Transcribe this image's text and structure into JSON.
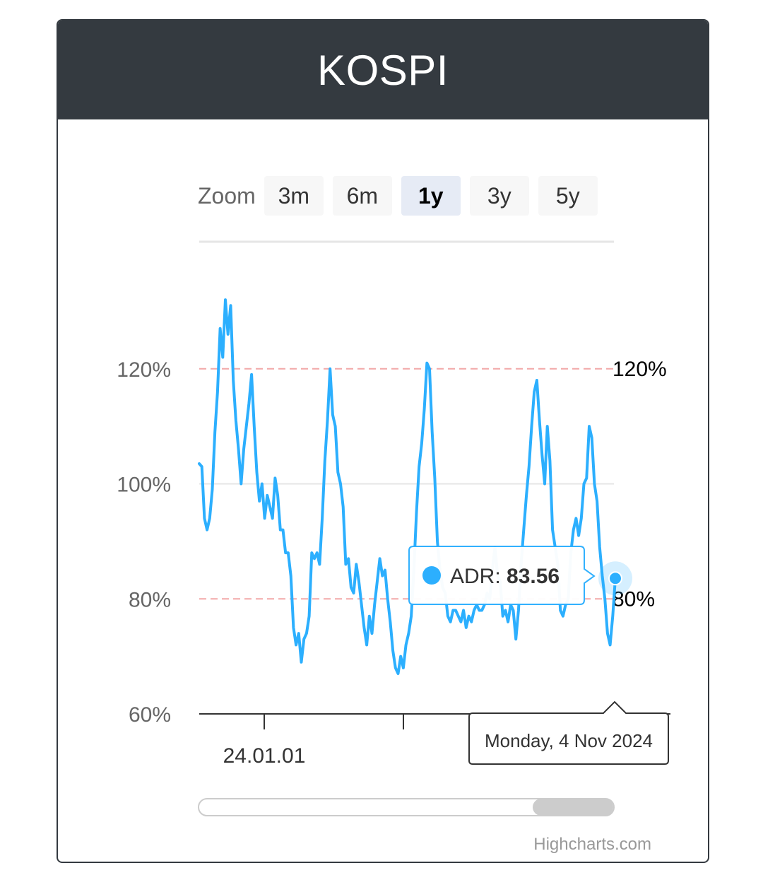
{
  "title": "KOSPI",
  "zoom": {
    "label": "Zoom",
    "buttons": [
      "3m",
      "6m",
      "1y",
      "3y",
      "5y"
    ],
    "selected": "1y"
  },
  "chart_data": {
    "type": "line",
    "series": [
      {
        "name": "ADR",
        "color": "#2caffe",
        "values": [
          103.5,
          103,
          94,
          92,
          94,
          99,
          109,
          116,
          127,
          122,
          132,
          126,
          131,
          118,
          111,
          106,
          100,
          106,
          110,
          114,
          119,
          110,
          102,
          97,
          100,
          94,
          98,
          96,
          94,
          101,
          98,
          92,
          92,
          88,
          88,
          84,
          75,
          72,
          74,
          69,
          73,
          74,
          77,
          88,
          87,
          88,
          86,
          94,
          104,
          111,
          120,
          112,
          110,
          102,
          100,
          96,
          86,
          87,
          82,
          81,
          86,
          83,
          79,
          75,
          72,
          77,
          74,
          79,
          83,
          87,
          84,
          85,
          80,
          76,
          71,
          68,
          67,
          70,
          68,
          72,
          74,
          77,
          85,
          95,
          103,
          107,
          113,
          121,
          120,
          109,
          101,
          90,
          85,
          82,
          81,
          77,
          76,
          78,
          78,
          77,
          76,
          78,
          75,
          77,
          76,
          78,
          79,
          78,
          78,
          79,
          81,
          80,
          85,
          89,
          84,
          83,
          77,
          78,
          76,
          79,
          78,
          73,
          78,
          86,
          92,
          98,
          103,
          110,
          116,
          118,
          111,
          105,
          100,
          110,
          104,
          92,
          89,
          86,
          78,
          77,
          79,
          80,
          88,
          92,
          94,
          91,
          94,
          100,
          101,
          110,
          108,
          100,
          97,
          89,
          84,
          80,
          74,
          72,
          77,
          83.56
        ]
      }
    ],
    "x_tick_labels": [
      "24.01.01"
    ],
    "y_tick_labels": [
      "60%",
      "80%",
      "100%",
      "120%"
    ],
    "ylim": [
      60,
      140
    ],
    "grid": true,
    "plot_lines": [
      {
        "value": 120,
        "label": "120%",
        "color": "#f2a8a8",
        "dash": "dashed"
      },
      {
        "value": 80,
        "label": "80%",
        "color": "#f2a8a8",
        "dash": "dashed"
      }
    ],
    "tooltip": {
      "series_label": "ADR",
      "value": "83.56",
      "date": "Monday, 4 Nov 2024"
    },
    "credits": "Highcharts.com"
  }
}
